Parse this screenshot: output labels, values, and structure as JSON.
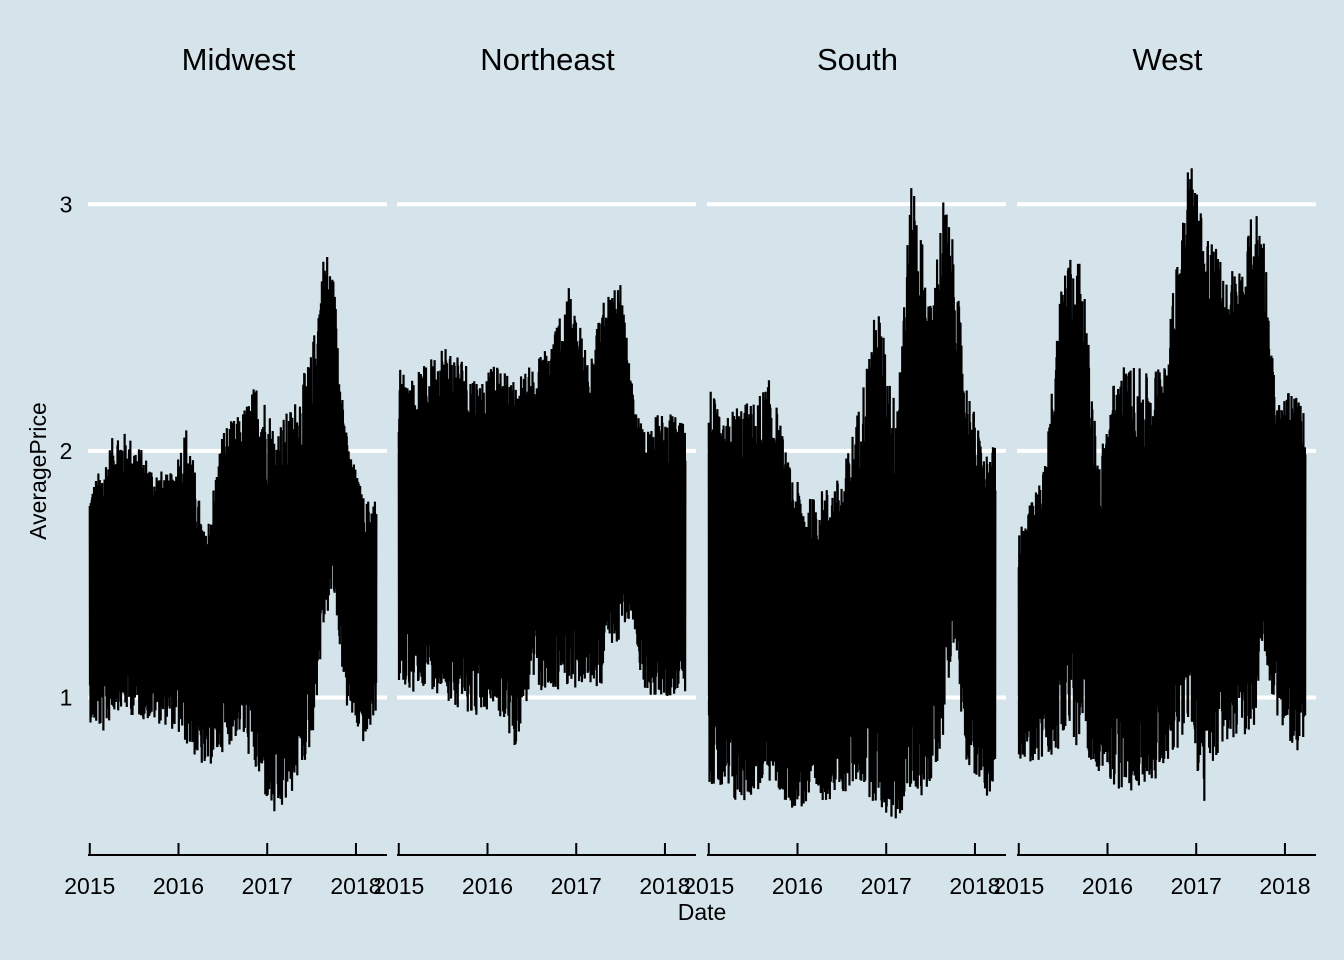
{
  "chart_data": {
    "type": "line",
    "xlabel": "Date",
    "ylabel": "AveragePrice",
    "y_ticks": [
      1,
      2,
      3
    ],
    "ylim": [
      0.43,
      3.35
    ],
    "x_ticks": [
      "2015",
      "2016",
      "2017",
      "2018"
    ],
    "xlim": [
      2014.98,
      2018.35
    ],
    "data_range": [
      2015.0,
      2018.23
    ],
    "grid": "horizontal",
    "background": "#d5e4eb",
    "gridline_color": "#ffffff",
    "line_color": "#000000",
    "panels": [
      {
        "title": "Midwest",
        "envelope": {
          "x": [
            2015.0,
            2015.15,
            2015.3,
            2015.5,
            2015.7,
            2015.9,
            2016.1,
            2016.3,
            2016.5,
            2016.7,
            2016.9,
            2017.1,
            2017.3,
            2017.5,
            2017.65,
            2017.75,
            2017.9,
            2018.1,
            2018.23
          ],
          "high": [
            1.85,
            1.95,
            2.1,
            2.05,
            1.95,
            1.9,
            2.12,
            1.65,
            2.1,
            2.15,
            2.3,
            2.1,
            2.2,
            2.4,
            2.85,
            2.7,
            2.05,
            1.8,
            1.82
          ],
          "low": [
            0.9,
            0.85,
            0.95,
            0.92,
            0.9,
            0.88,
            0.8,
            0.7,
            0.78,
            0.85,
            0.65,
            0.48,
            0.62,
            0.8,
            1.3,
            1.4,
            0.95,
            0.8,
            0.95
          ]
        }
      },
      {
        "title": "Northeast",
        "envelope": {
          "x": [
            2015.0,
            2015.15,
            2015.3,
            2015.5,
            2015.7,
            2015.9,
            2016.1,
            2016.3,
            2016.5,
            2016.7,
            2016.9,
            2017.1,
            2017.3,
            2017.5,
            2017.65,
            2017.75,
            2017.9,
            2018.1,
            2018.23
          ],
          "high": [
            2.35,
            2.3,
            2.35,
            2.45,
            2.4,
            2.3,
            2.35,
            2.3,
            2.35,
            2.45,
            2.68,
            2.45,
            2.6,
            2.68,
            2.2,
            2.1,
            2.15,
            2.15,
            2.1
          ],
          "low": [
            1.05,
            1.0,
            1.05,
            1.0,
            0.95,
            0.92,
            0.95,
            0.78,
            1.05,
            1.0,
            1.05,
            1.02,
            1.05,
            1.25,
            1.3,
            1.02,
            1.0,
            1.0,
            0.98
          ]
        }
      },
      {
        "title": "South",
        "envelope": {
          "x": [
            2015.0,
            2015.15,
            2015.3,
            2015.5,
            2015.7,
            2015.9,
            2016.1,
            2016.3,
            2016.5,
            2016.7,
            2016.9,
            2017.1,
            2017.3,
            2017.5,
            2017.65,
            2017.75,
            2017.9,
            2018.1,
            2018.23
          ],
          "high": [
            2.3,
            2.1,
            2.2,
            2.2,
            2.3,
            1.95,
            1.8,
            1.85,
            1.9,
            2.2,
            2.62,
            2.2,
            3.15,
            2.6,
            3.05,
            2.85,
            2.3,
            2.0,
            2.02
          ],
          "low": [
            0.65,
            0.6,
            0.55,
            0.6,
            0.65,
            0.55,
            0.55,
            0.58,
            0.6,
            0.65,
            0.55,
            0.48,
            0.6,
            0.6,
            0.85,
            1.25,
            0.75,
            0.6,
            0.6
          ]
        }
      },
      {
        "title": "West",
        "envelope": {
          "x": [
            2015.0,
            2015.15,
            2015.3,
            2015.5,
            2015.7,
            2015.9,
            2016.1,
            2016.3,
            2016.5,
            2016.7,
            2016.9,
            2017.1,
            2017.3,
            2017.5,
            2017.65,
            2017.75,
            2017.9,
            2018.1,
            2018.23
          ],
          "high": [
            1.7,
            1.8,
            1.95,
            2.8,
            2.8,
            1.95,
            2.35,
            2.35,
            2.3,
            2.5,
            3.25,
            2.95,
            2.75,
            2.75,
            3.0,
            2.95,
            2.2,
            2.25,
            2.15
          ],
          "low": [
            0.75,
            0.72,
            0.75,
            0.78,
            0.8,
            0.7,
            0.62,
            0.62,
            0.65,
            0.75,
            0.85,
            0.55,
            0.8,
            0.85,
            0.85,
            1.2,
            0.92,
            0.75,
            0.85
          ]
        }
      }
    ]
  }
}
